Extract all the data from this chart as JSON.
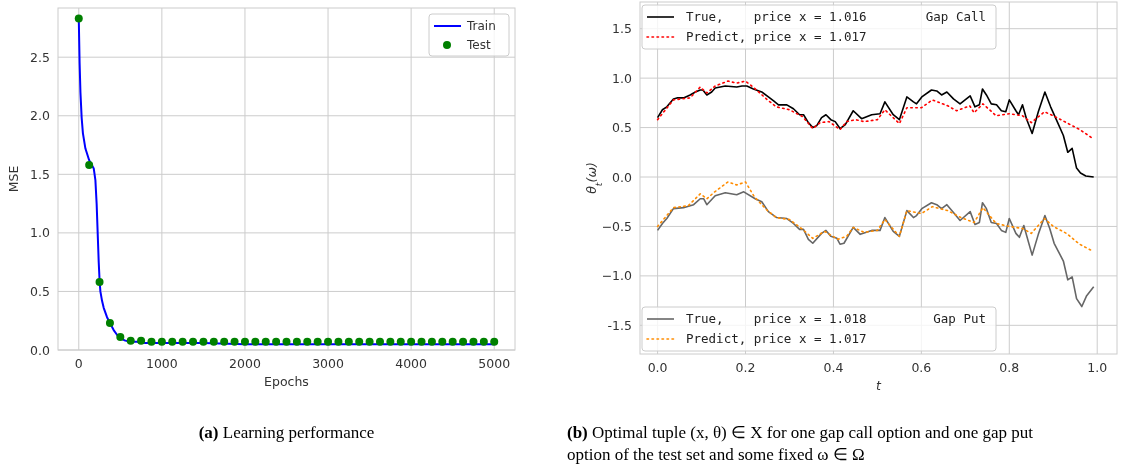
{
  "chart_data": [
    {
      "type": "line",
      "xlabel": "Epochs",
      "ylabel": "MSE",
      "xlim": [
        -250,
        5250
      ],
      "ylim": [
        0,
        2.92
      ],
      "xticks": [
        0,
        1000,
        2000,
        3000,
        4000,
        5000
      ],
      "yticks": [
        {
          "value": 0,
          "label": "0.0"
        },
        0.5,
        {
          "value": 1,
          "label": "1.0"
        },
        1.5,
        {
          "value": 2,
          "label": "2.0"
        },
        2.5
      ],
      "grid": true,
      "legend": "top right",
      "series": [
        {
          "name": "Train",
          "color": "#0000ff",
          "x": [
            0,
            10,
            20,
            35,
            50,
            80,
            125,
            180,
            200,
            215,
            230,
            240,
            250,
            260,
            280,
            300,
            340,
            375,
            420,
            460,
            500,
            560,
            620,
            700,
            800,
            1000,
            1500,
            2000,
            3000,
            4000,
            5000
          ],
          "values": [
            2.83,
            2.45,
            2.2,
            1.98,
            1.85,
            1.72,
            1.62,
            1.55,
            1.45,
            1.25,
            0.95,
            0.75,
            0.6,
            0.5,
            0.42,
            0.36,
            0.28,
            0.23,
            0.17,
            0.13,
            0.1,
            0.08,
            0.07,
            0.07,
            0.06,
            0.06,
            0.06,
            0.05,
            0.05,
            0.05,
            0.05
          ]
        },
        {
          "name": "Test",
          "type": "scatter",
          "color": "#008000",
          "x": [
            0,
            125,
            250,
            375,
            500,
            625,
            750,
            875,
            1000,
            1125,
            1250,
            1375,
            1500,
            1625,
            1750,
            1875,
            2000,
            2125,
            2250,
            2375,
            2500,
            2625,
            2750,
            2875,
            3000,
            3125,
            3250,
            3375,
            3500,
            3625,
            3750,
            3875,
            4000,
            4125,
            4250,
            4375,
            4500,
            4625,
            4750,
            4875,
            5000
          ],
          "values": [
            2.83,
            1.58,
            0.58,
            0.23,
            0.11,
            0.08,
            0.08,
            0.07,
            0.07,
            0.07,
            0.07,
            0.07,
            0.07,
            0.07,
            0.07,
            0.07,
            0.07,
            0.07,
            0.07,
            0.07,
            0.07,
            0.07,
            0.07,
            0.07,
            0.07,
            0.07,
            0.07,
            0.07,
            0.07,
            0.07,
            0.07,
            0.07,
            0.07,
            0.07,
            0.07,
            0.07,
            0.07,
            0.07,
            0.07,
            0.07,
            0.07
          ]
        }
      ],
      "annotations": [
        "(a) Learning performance"
      ]
    },
    {
      "type": "line",
      "xlabel": "t",
      "ylabel": "θ$_{t}$(ω)",
      "xlim": [
        -0.04,
        1.045
      ],
      "ylim": [
        -1.79,
        1.77
      ],
      "xticks": [
        {
          "value": 0,
          "label": "0.0"
        },
        0.2,
        0.4,
        0.6,
        0.8,
        {
          "value": 1,
          "label": "1.0"
        }
      ],
      "yticks": [
        -1.5,
        {
          "value": -1,
          "label": "−1.0"
        },
        {
          "value": -0.5,
          "label": "−0.5"
        },
        {
          "value": 0,
          "label": "0.0"
        },
        0.5,
        {
          "value": 1,
          "label": "1.0"
        },
        1.5
      ],
      "grid": true,
      "legend": "left",
      "series": [
        {
          "name": "True,    price x = 1.016",
          "color": "#000000",
          "line_style": "solid",
          "x": [
            0,
            0.011,
            0.021,
            0.036,
            0.044,
            0.059,
            0.074,
            0.086,
            0.097,
            0.103,
            0.112,
            0.123,
            0.131,
            0.154,
            0.18,
            0.192,
            0.203,
            0.218,
            0.237,
            0.252,
            0.264,
            0.275,
            0.294,
            0.309,
            0.323,
            0.332,
            0.343,
            0.353,
            0.362,
            0.373,
            0.383,
            0.394,
            0.404,
            0.415,
            0.427,
            0.445,
            0.464,
            0.487,
            0.506,
            0.517,
            0.536,
            0.55,
            0.567,
            0.582,
            0.589,
            0.601,
            0.623,
            0.635,
            0.646,
            0.658,
            0.673,
            0.688,
            0.711,
            0.722,
            0.732,
            0.739,
            0.748,
            0.759,
            0.771,
            0.782,
            0.792,
            0.8,
            0.815,
            0.821,
            0.83,
            0.839,
            0.852,
            0.866,
            0.881,
            0.894,
            0.908,
            0.923,
            0.933,
            0.943,
            0.953,
            0.962,
            0.974,
            0.992
          ],
          "values": [
            0.6,
            0.68,
            0.71,
            0.79,
            0.8,
            0.8,
            0.83,
            0.86,
            0.88,
            0.88,
            0.83,
            0.86,
            0.9,
            0.92,
            0.91,
            0.92,
            0.92,
            0.89,
            0.86,
            0.81,
            0.77,
            0.73,
            0.73,
            0.69,
            0.63,
            0.63,
            0.55,
            0.5,
            0.52,
            0.6,
            0.63,
            0.58,
            0.56,
            0.49,
            0.53,
            0.67,
            0.59,
            0.63,
            0.64,
            0.76,
            0.63,
            0.58,
            0.81,
            0.76,
            0.74,
            0.81,
            0.88,
            0.87,
            0.83,
            0.86,
            0.79,
            0.74,
            0.82,
            0.71,
            0.73,
            0.89,
            0.83,
            0.74,
            0.73,
            0.67,
            0.66,
            0.78,
            0.67,
            0.63,
            0.73,
            0.59,
            0.44,
            0.66,
            0.86,
            0.71,
            0.57,
            0.42,
            0.25,
            0.29,
            0.09,
            0.04,
            0.01,
            0
          ]
        },
        {
          "name": "Predict, price x = 1.017",
          "color": "#ff0000",
          "line_style": "dotted",
          "x": [
            0,
            0.036,
            0.074,
            0.097,
            0.112,
            0.131,
            0.16,
            0.18,
            0.2,
            0.22,
            0.25,
            0.27,
            0.3,
            0.33,
            0.353,
            0.37,
            0.39,
            0.415,
            0.43,
            0.45,
            0.47,
            0.5,
            0.517,
            0.55,
            0.567,
            0.6,
            0.625,
            0.66,
            0.68,
            0.71,
            0.72,
            0.74,
            0.77,
            0.8,
            0.83,
            0.85,
            0.88,
            0.9,
            0.93,
            0.96,
            0.99
          ],
          "values": [
            0.58,
            0.78,
            0.8,
            0.91,
            0.85,
            0.92,
            0.97,
            0.95,
            0.97,
            0.9,
            0.78,
            0.71,
            0.68,
            0.61,
            0.49,
            0.55,
            0.56,
            0.48,
            0.56,
            0.58,
            0.56,
            0.58,
            0.68,
            0.54,
            0.7,
            0.7,
            0.78,
            0.72,
            0.67,
            0.72,
            0.65,
            0.74,
            0.62,
            0.64,
            0.62,
            0.55,
            0.66,
            0.62,
            0.55,
            0.48,
            0.39
          ]
        },
        {
          "name": "True,    price x = 1.018",
          "color": "#666666",
          "line_style": "solid",
          "x": [
            0,
            0.011,
            0.021,
            0.036,
            0.059,
            0.082,
            0.097,
            0.105,
            0.112,
            0.131,
            0.154,
            0.18,
            0.196,
            0.222,
            0.237,
            0.252,
            0.271,
            0.294,
            0.309,
            0.323,
            0.332,
            0.343,
            0.353,
            0.373,
            0.383,
            0.394,
            0.408,
            0.415,
            0.424,
            0.445,
            0.461,
            0.487,
            0.506,
            0.517,
            0.536,
            0.55,
            0.567,
            0.582,
            0.589,
            0.601,
            0.623,
            0.635,
            0.646,
            0.658,
            0.673,
            0.688,
            0.711,
            0.722,
            0.732,
            0.739,
            0.748,
            0.759,
            0.771,
            0.782,
            0.792,
            0.8,
            0.815,
            0.823,
            0.833,
            0.852,
            0.866,
            0.881,
            0.892,
            0.902,
            0.923,
            0.933,
            0.943,
            0.953,
            0.965,
            0.976,
            0.992
          ],
          "values": [
            -0.54,
            -0.47,
            -0.42,
            -0.32,
            -0.31,
            -0.28,
            -0.22,
            -0.22,
            -0.28,
            -0.19,
            -0.16,
            -0.18,
            -0.15,
            -0.22,
            -0.25,
            -0.35,
            -0.41,
            -0.42,
            -0.47,
            -0.53,
            -0.53,
            -0.63,
            -0.67,
            -0.57,
            -0.54,
            -0.6,
            -0.62,
            -0.68,
            -0.67,
            -0.51,
            -0.58,
            -0.54,
            -0.54,
            -0.41,
            -0.55,
            -0.6,
            -0.34,
            -0.41,
            -0.39,
            -0.32,
            -0.26,
            -0.28,
            -0.32,
            -0.28,
            -0.36,
            -0.44,
            -0.35,
            -0.48,
            -0.46,
            -0.26,
            -0.32,
            -0.46,
            -0.47,
            -0.54,
            -0.56,
            -0.42,
            -0.57,
            -0.61,
            -0.49,
            -0.79,
            -0.58,
            -0.39,
            -0.52,
            -0.67,
            -0.85,
            -1.04,
            -1.01,
            -1.23,
            -1.31,
            -1.2,
            -1.11
          ]
        },
        {
          "name": "Predict, price x = 1.017",
          "color": "#ff8c00",
          "line_style": "dotted",
          "x": [
            0,
            0.036,
            0.07,
            0.097,
            0.112,
            0.13,
            0.16,
            0.18,
            0.2,
            0.22,
            0.25,
            0.27,
            0.3,
            0.33,
            0.353,
            0.38,
            0.41,
            0.43,
            0.445,
            0.47,
            0.5,
            0.517,
            0.55,
            0.567,
            0.6,
            0.625,
            0.66,
            0.69,
            0.72,
            0.74,
            0.77,
            0.8,
            0.83,
            0.85,
            0.88,
            0.9,
            0.93,
            0.96,
            0.99
          ],
          "values": [
            -0.5,
            -0.31,
            -0.29,
            -0.17,
            -0.22,
            -0.15,
            -0.05,
            -0.08,
            -0.05,
            -0.2,
            -0.34,
            -0.41,
            -0.43,
            -0.53,
            -0.62,
            -0.55,
            -0.63,
            -0.6,
            -0.51,
            -0.56,
            -0.54,
            -0.43,
            -0.6,
            -0.34,
            -0.37,
            -0.3,
            -0.34,
            -0.41,
            -0.46,
            -0.31,
            -0.47,
            -0.5,
            -0.52,
            -0.57,
            -0.42,
            -0.5,
            -0.57,
            -0.68,
            -0.75
          ]
        }
      ],
      "annotations": [
        "Gap Call",
        "Gap Put",
        "(b) Optimal tuple (x, θ) ∈ X for one gap call option and one gap put option of the test set and some fixed ω ∈ Ω"
      ]
    }
  ]
}
